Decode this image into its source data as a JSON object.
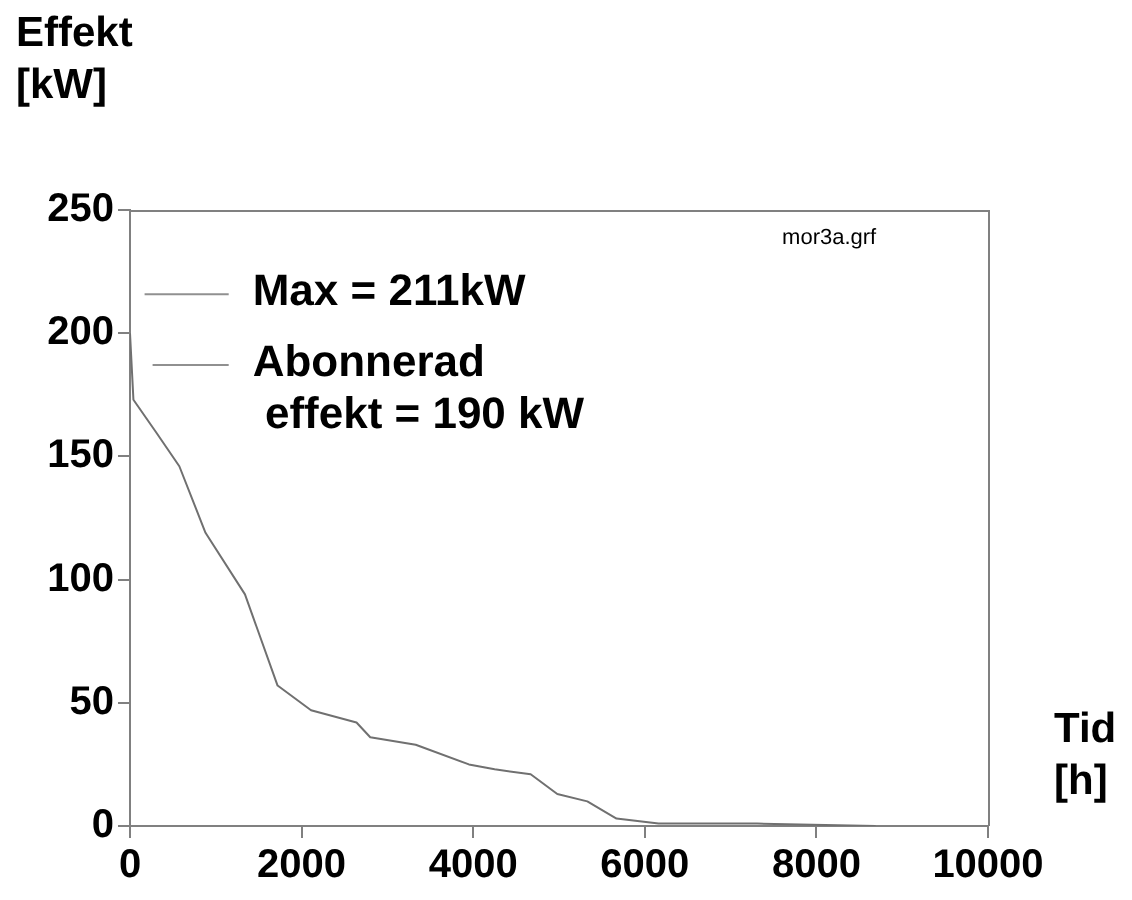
{
  "chart_data": {
    "type": "line",
    "xlabel": "Tid\n[h]",
    "ylabel": "Effekt\n[kW]",
    "annotations": [
      "Max = 211kW",
      "Abonnerad\n effekt = 190 kW",
      "mor3a.grf"
    ],
    "series": [
      {
        "color": "#707070",
        "x": [
          0,
          40,
          300,
          575,
          880,
          1340,
          1720,
          2110,
          2640,
          2800,
          3330,
          3950,
          4250,
          4670,
          4980,
          5330,
          5670,
          6160,
          7310,
          8690
        ],
        "values": [
          200,
          173,
          160,
          146,
          119,
          94,
          57,
          47,
          42,
          36,
          33,
          25,
          23,
          21,
          13,
          10,
          3,
          1,
          1,
          0
        ]
      }
    ],
    "xlim": [
      0,
      10000
    ],
    "xticks": [
      0,
      2000,
      4000,
      6000,
      8000,
      10000
    ],
    "ylim": [
      0,
      250
    ],
    "yticks": [
      0,
      50,
      100,
      150,
      200,
      250
    ],
    "grid": false,
    "legend": false,
    "marker": "none",
    "line_style": "solid"
  }
}
